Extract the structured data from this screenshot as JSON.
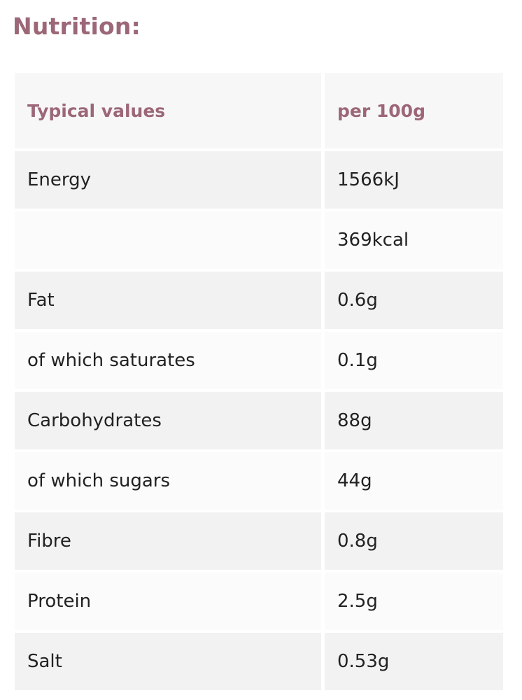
{
  "heading": "Nutrition:",
  "table": {
    "header": [
      "Typical values",
      "per 100g"
    ],
    "rows": [
      {
        "label": "Energy",
        "value": "1566kJ"
      },
      {
        "value": "369kcal"
      },
      {
        "label": "Fat",
        "value": "0.6g"
      },
      {
        "label": "of which saturates",
        "value": "0.1g"
      },
      {
        "label": "Carbohydrates",
        "value": "88g"
      },
      {
        "label": "of which sugars",
        "value": "44g"
      },
      {
        "label": "Fibre",
        "value": "0.8g"
      },
      {
        "label": "Protein",
        "value": "2.5g"
      },
      {
        "label": "Salt",
        "value": "0.53g"
      }
    ]
  }
}
